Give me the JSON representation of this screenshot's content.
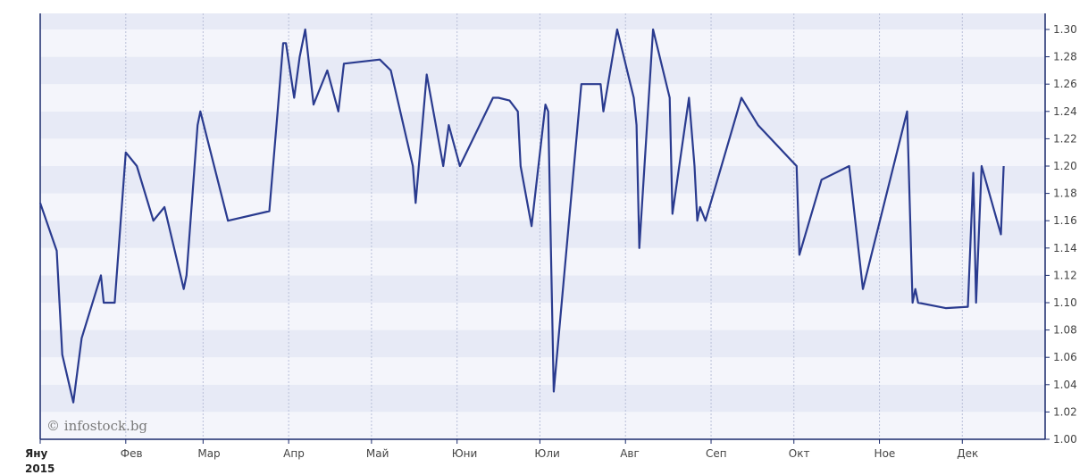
{
  "watermark": "© infostock.bg",
  "chart_data": {
    "type": "line",
    "title": "",
    "xlabel": "",
    "ylabel": "",
    "year_label": "2015",
    "ylim": [
      1.0,
      1.31
    ],
    "y_ticks": [
      "1.00",
      "1.02",
      "1.04",
      "1.06",
      "1.08",
      "1.10",
      "1.12",
      "1.14",
      "1.16",
      "1.18",
      "1.20",
      "1.22",
      "1.24",
      "1.26",
      "1.28",
      "1.30"
    ],
    "x_labels": [
      {
        "label": "Яну",
        "day": 0
      },
      {
        "label": "Фев",
        "day": 31
      },
      {
        "label": "Мар",
        "day": 59
      },
      {
        "label": "Апр",
        "day": 90
      },
      {
        "label": "Май",
        "day": 120
      },
      {
        "label": "Юни",
        "day": 151
      },
      {
        "label": "Юли",
        "day": 181
      },
      {
        "label": "Авг",
        "day": 212
      },
      {
        "label": "Сеп",
        "day": 243
      },
      {
        "label": "Окт",
        "day": 273
      },
      {
        "label": "Ное",
        "day": 304
      },
      {
        "label": "Дек",
        "day": 334
      }
    ],
    "grid": "horizontal-bands",
    "line_color": "#2a3b8f",
    "series": [
      {
        "x": [
          0,
          6,
          8,
          12,
          15,
          22,
          23,
          25,
          27,
          31,
          35,
          41,
          45,
          52,
          53,
          57,
          58,
          68,
          83,
          86,
          88,
          89,
          92,
          94,
          96,
          99,
          104,
          108,
          110,
          123,
          127,
          135,
          136,
          140,
          146,
          148,
          152,
          164,
          166,
          170,
          173,
          174,
          178,
          183,
          184,
          186,
          196,
          203,
          204,
          209,
          215,
          216,
          217,
          222,
          228,
          229,
          235,
          237,
          238,
          239,
          241,
          254,
          260,
          274,
          275,
          283,
          293,
          298,
          314,
          316,
          317,
          318,
          328,
          336,
          338,
          339,
          341,
          348,
          349
        ],
        "y": [
          1.173,
          1.138,
          1.062,
          1.027,
          1.074,
          1.12,
          1.1,
          1.1,
          1.1,
          1.21,
          1.2,
          1.16,
          1.17,
          1.11,
          1.12,
          1.23,
          1.24,
          1.16,
          1.167,
          1.24,
          1.29,
          1.29,
          1.25,
          1.28,
          1.3,
          1.245,
          1.27,
          1.24,
          1.275,
          1.278,
          1.27,
          1.2,
          1.173,
          1.267,
          1.2,
          1.23,
          1.2,
          1.25,
          1.25,
          1.248,
          1.24,
          1.2,
          1.156,
          1.245,
          1.24,
          1.035,
          1.26,
          1.26,
          1.24,
          1.3,
          1.25,
          1.23,
          1.14,
          1.3,
          1.25,
          1.165,
          1.25,
          1.2,
          1.16,
          1.17,
          1.16,
          1.25,
          1.23,
          1.2,
          1.135,
          1.19,
          1.2,
          1.11,
          1.24,
          1.1,
          1.11,
          1.1,
          1.096,
          1.097,
          1.195,
          1.1,
          1.2,
          1.15,
          1.2
        ]
      }
    ]
  }
}
